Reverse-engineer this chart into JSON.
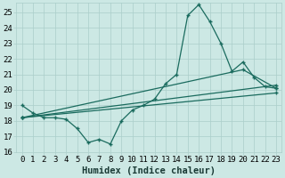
{
  "xlabel": "Humidex (Indice chaleur)",
  "bg_color": "#cce8e4",
  "grid_color": "#aaceca",
  "line_color": "#1a6b5e",
  "xlim": [
    -0.5,
    23.5
  ],
  "ylim": [
    16,
    25.6
  ],
  "xticks": [
    0,
    1,
    2,
    3,
    4,
    5,
    6,
    7,
    8,
    9,
    10,
    11,
    12,
    13,
    14,
    15,
    16,
    17,
    18,
    19,
    20,
    21,
    22,
    23
  ],
  "yticks": [
    16,
    17,
    18,
    19,
    20,
    21,
    22,
    23,
    24,
    25
  ],
  "main_x": [
    0,
    1,
    2,
    3,
    4,
    5,
    6,
    7,
    8,
    9,
    10,
    11,
    12,
    13,
    14,
    15,
    16,
    17,
    18,
    19,
    20,
    21,
    22,
    23
  ],
  "main_y": [
    19.0,
    18.5,
    18.2,
    18.2,
    18.1,
    17.5,
    16.6,
    16.8,
    16.5,
    18.0,
    18.7,
    19.0,
    19.4,
    20.4,
    21.0,
    24.8,
    25.5,
    24.4,
    23.0,
    21.2,
    21.8,
    20.8,
    20.2,
    20.1
  ],
  "line2_x": [
    0,
    23
  ],
  "line2_y": [
    18.2,
    20.3
  ],
  "line3_x": [
    0,
    23
  ],
  "line3_y": [
    18.2,
    19.8
  ],
  "line4_x": [
    0,
    20,
    23
  ],
  "line4_y": [
    18.2,
    21.3,
    20.1
  ],
  "markersize": 2.5,
  "linewidth": 0.9,
  "xlabel_fontsize": 7.5,
  "tick_fontsize": 6.5
}
